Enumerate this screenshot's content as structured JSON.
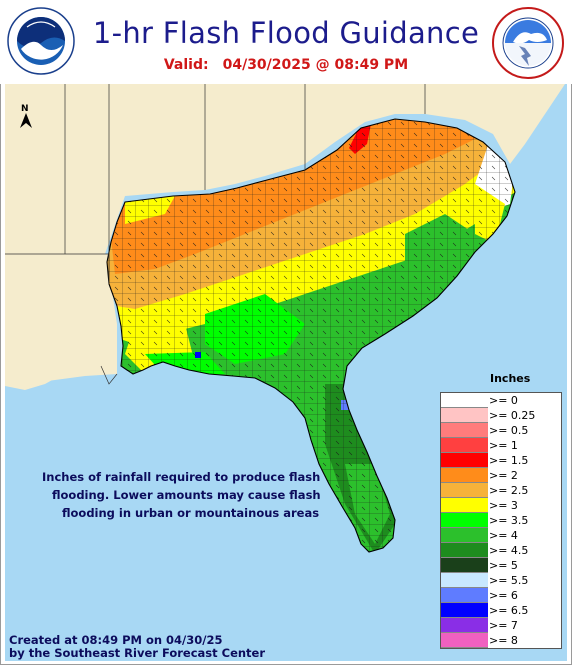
{
  "header": {
    "title": "1-hr Flash Flood Guidance",
    "valid_label": "Valid:",
    "valid_datetime": "04/30/2025 @ 08:49 PM"
  },
  "map": {
    "north_arrow_label": "N",
    "note_lines": [
      "Inches of rainfall required to produce flash",
      "flooding. Lower amounts may cause flash",
      "flooding in urban or mountainous areas"
    ]
  },
  "legend": {
    "title": "Inches",
    "items": [
      {
        "label": ">= 0",
        "color": "#ffffff"
      },
      {
        "label": ">= 0.25",
        "color": "#ffc4c4"
      },
      {
        "label": ">= 0.5",
        "color": "#ff7c7c"
      },
      {
        "label": ">= 1",
        "color": "#ff4040"
      },
      {
        "label": ">= 1.5",
        "color": "#ff0000"
      },
      {
        "label": ">= 2",
        "color": "#ff8c1a"
      },
      {
        "label": ">= 2.5",
        "color": "#f6b23a"
      },
      {
        "label": ">= 3",
        "color": "#ffff00"
      },
      {
        "label": ">= 3.5",
        "color": "#00ff00"
      },
      {
        "label": ">= 4",
        "color": "#2cc02c"
      },
      {
        "label": ">= 4.5",
        "color": "#1e8c1e"
      },
      {
        "label": ">= 5",
        "color": "#1a401a"
      },
      {
        "label": ">= 5.5",
        "color": "#c8e8ff"
      },
      {
        "label": ">= 6",
        "color": "#5f7cff"
      },
      {
        "label": ">= 6.5",
        "color": "#0000ff"
      },
      {
        "label": ">= 7",
        "color": "#8a2ee6"
      },
      {
        "label": ">= 8",
        "color": "#f060c0"
      }
    ]
  },
  "footer": {
    "line1": "Created at 08:49 PM on 04/30/25",
    "line2": "by the Southeast River Forecast Center"
  },
  "colors": {
    "water": "#a8d8f4",
    "land_outside": "#f5eccd",
    "title_blue": "#1c1c8c",
    "valid_red": "#d01818"
  }
}
